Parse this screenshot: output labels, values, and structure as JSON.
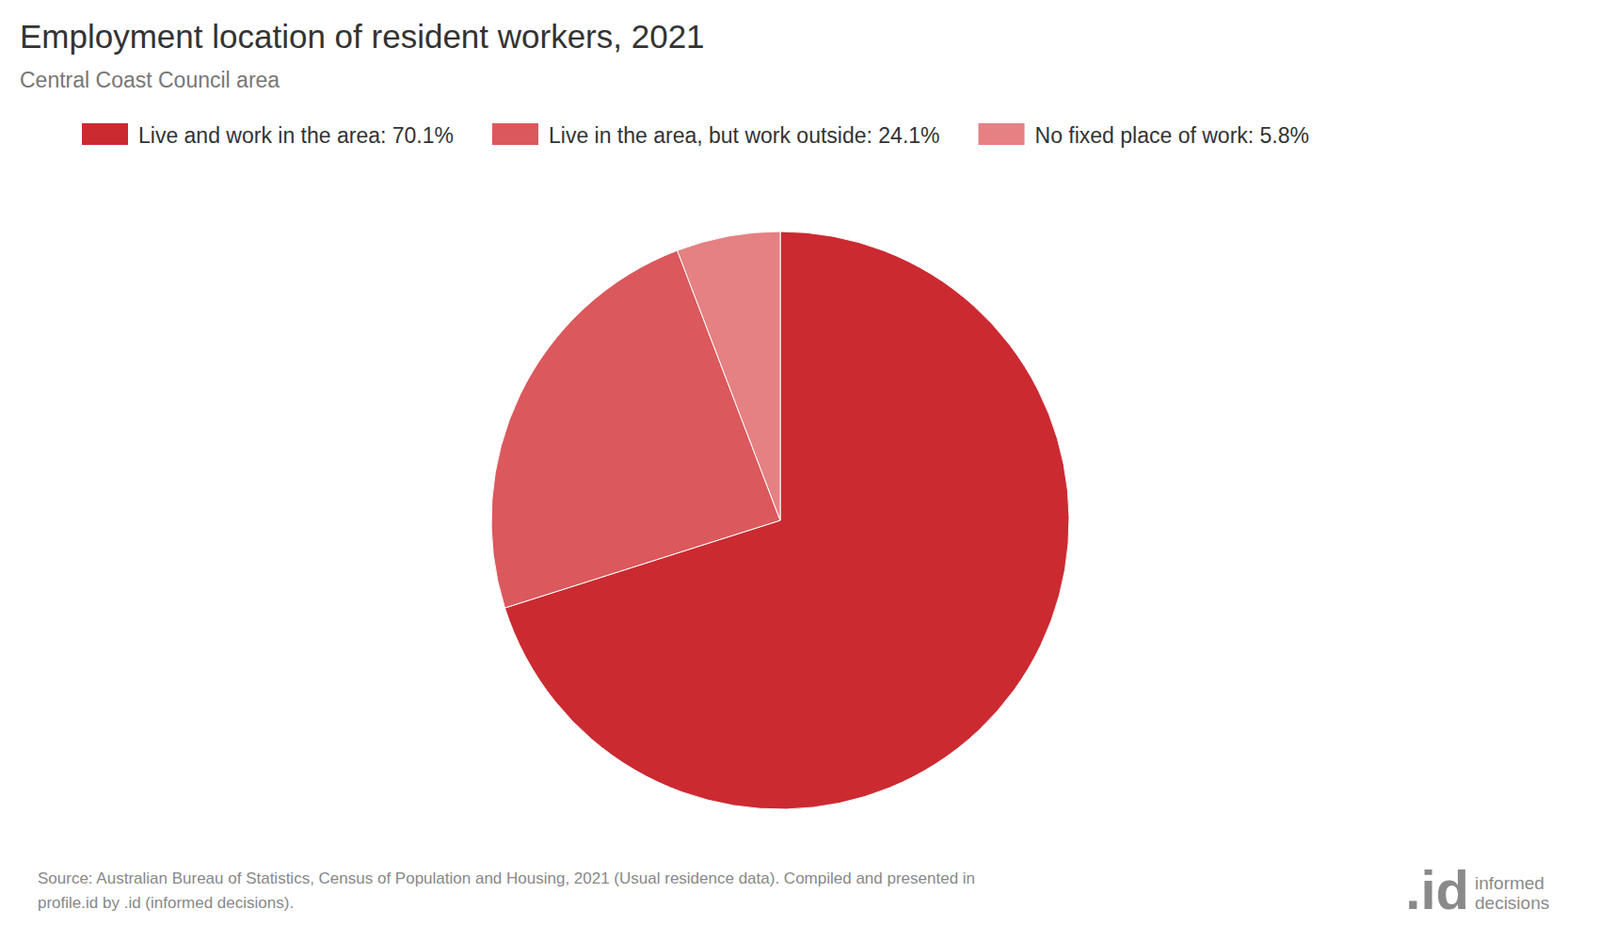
{
  "chart_data": {
    "type": "pie",
    "title": "Employment location of resident workers, 2021",
    "subtitle": "Central Coast Council area",
    "categories": [
      "Live and work in the area: 70.1%",
      "Live in the area, but work outside: 24.1%",
      "No fixed place of work: 5.8%"
    ],
    "values": [
      70.1,
      24.1,
      5.8
    ],
    "colors": [
      "#cb2a31",
      "#db585c",
      "#e58083"
    ],
    "legend": "top",
    "source": [
      "Source: Australian Bureau of Statistics, Census of Population and Housing, 2021 (Usual residence data). Compiled and presented in",
      "profile.id by .id (informed decisions)."
    ],
    "logo": ".id",
    "logo_caption": [
      "informed",
      "decisions"
    ]
  }
}
